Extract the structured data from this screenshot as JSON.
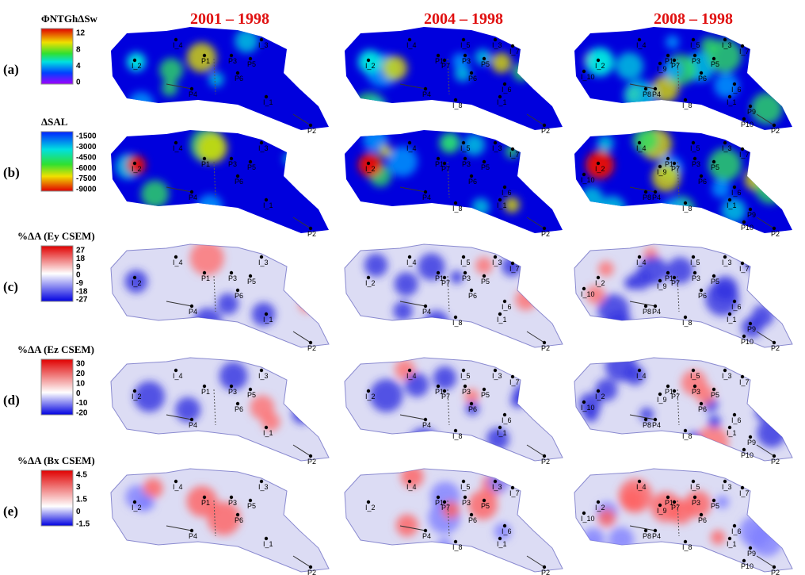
{
  "columns": [
    "2001 – 1998",
    "2004 – 1998",
    "2008 – 1998"
  ],
  "rows": [
    {
      "label": "(a)",
      "legend": {
        "title": "ΦNTGhΔSw",
        "ticks": [
          "12",
          "8",
          "4",
          "0"
        ]
      }
    },
    {
      "label": "(b)",
      "legend": {
        "title": "ΔSAL",
        "ticks": [
          "-1500",
          "-3000",
          "-4500",
          "-6000",
          "-7500",
          "-9000"
        ]
      }
    },
    {
      "label": "(c)",
      "legend": {
        "title": "%ΔA (Ey CSEM)",
        "ticks": [
          "27",
          "18",
          "9",
          "0",
          "-9",
          "-18",
          "-27"
        ]
      }
    },
    {
      "label": "(d)",
      "legend": {
        "title": "%ΔA (Ez CSEM)",
        "ticks": [
          "30",
          "20",
          "10",
          "0",
          "-10",
          "-20"
        ]
      }
    },
    {
      "label": "(e)",
      "legend": {
        "title": "%ΔA (Bx CSEM)",
        "ticks": [
          "4.5",
          "3",
          "1.5",
          "0",
          "-1.5"
        ]
      }
    }
  ],
  "wells": [
    {
      "name": "I_2",
      "columns": [
        0,
        1,
        2
      ]
    },
    {
      "name": "I_4",
      "columns": [
        0,
        1,
        2
      ]
    },
    {
      "name": "P1",
      "columns": [
        0,
        1,
        2
      ]
    },
    {
      "name": "P3",
      "columns": [
        0,
        1,
        2
      ]
    },
    {
      "name": "I_3",
      "columns": [
        0,
        1,
        2
      ]
    },
    {
      "name": "P5",
      "columns": [
        0,
        1,
        2
      ]
    },
    {
      "name": "P6",
      "columns": [
        0,
        1,
        2
      ]
    },
    {
      "name": "P4",
      "columns": [
        0,
        1,
        2
      ]
    },
    {
      "name": "I_1",
      "columns": [
        0,
        1,
        2
      ]
    },
    {
      "name": "P2",
      "columns": [
        0,
        1,
        2
      ]
    },
    {
      "name": "I_5",
      "columns": [
        1,
        2
      ]
    },
    {
      "name": "I_7",
      "columns": [
        1,
        2
      ]
    },
    {
      "name": "P7",
      "columns": [
        1,
        2
      ]
    },
    {
      "name": "I_8",
      "columns": [
        1,
        2
      ]
    },
    {
      "name": "I_6",
      "columns": [
        1,
        2
      ]
    },
    {
      "name": "I_10",
      "columns": [
        2
      ]
    },
    {
      "name": "I_9",
      "columns": [
        2
      ]
    },
    {
      "name": "P8",
      "columns": [
        2
      ]
    },
    {
      "name": "P9",
      "columns": [
        2
      ]
    },
    {
      "name": "P10",
      "columns": [
        2
      ]
    }
  ]
}
